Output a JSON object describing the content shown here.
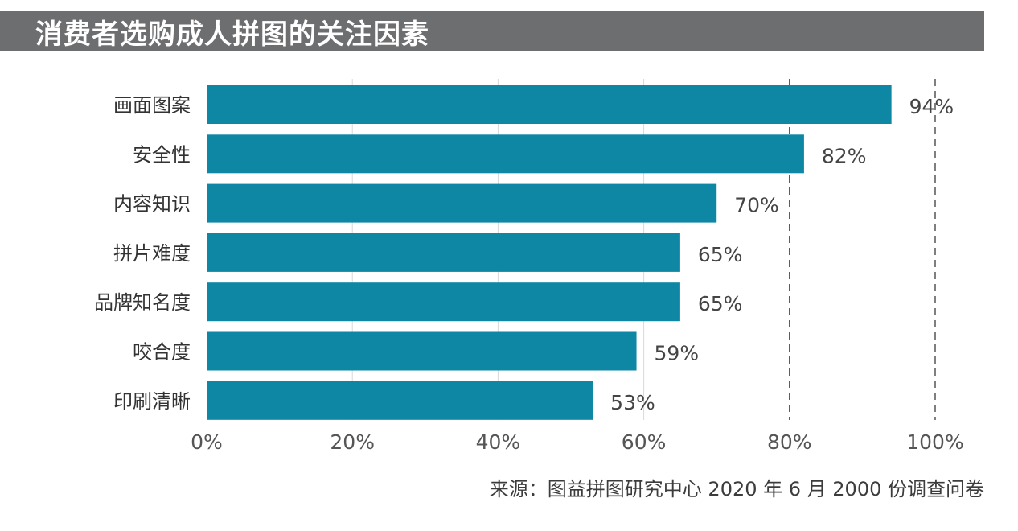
{
  "title": "消费者选购成人拼图的关注因素",
  "source": "来源：图益拼图研究中心 2020 年 6 月 2000 份调查问卷",
  "colors": {
    "bar": "#0e87a4",
    "title_bg": "#6d6e70",
    "grid": "#9a9a9a"
  },
  "chart_data": {
    "type": "bar",
    "orientation": "horizontal",
    "categories": [
      "画面图案",
      "安全性",
      "内容知识",
      "拼片难度",
      "品牌知名度",
      "咬合度",
      "印刷清晰"
    ],
    "values": [
      94,
      82,
      70,
      65,
      65,
      59,
      53
    ],
    "value_labels": [
      "94%",
      "82%",
      "70%",
      "65%",
      "65%",
      "59%",
      "53%"
    ],
    "xlim": [
      0,
      100
    ],
    "xticks": [
      0,
      20,
      40,
      60,
      80,
      100
    ],
    "xtick_labels": [
      "0%",
      "20%",
      "40%",
      "60%",
      "80%",
      "100%"
    ],
    "grid": "vertical dashed at 80% and 100%, solid light lines elsewhere"
  }
}
